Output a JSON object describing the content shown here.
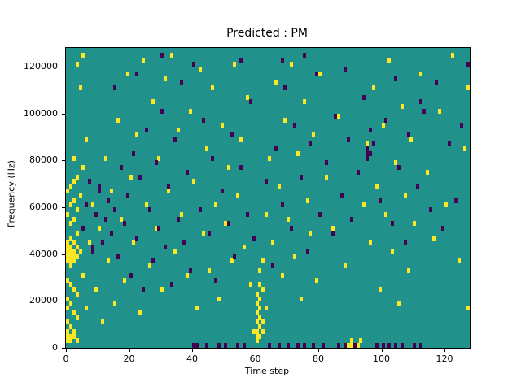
{
  "figure": {
    "title": "Predicted : PM",
    "xlabel": "Time step",
    "ylabel": "Frequency (Hz)"
  },
  "chart_data": {
    "type": "heatmap",
    "title": "Predicted : PM",
    "xlabel": "Time step",
    "ylabel": "Frequency (Hz)",
    "x_range": [
      0,
      128
    ],
    "y_range": [
      0,
      128000
    ],
    "x_ticks": [
      0,
      20,
      40,
      60,
      80,
      100,
      120
    ],
    "y_ticks": [
      0,
      20000,
      40000,
      60000,
      80000,
      100000,
      120000
    ],
    "grid_cols": 128,
    "grid_rows": 64,
    "legend": "none",
    "grid": false,
    "colors": {
      "background": "#21918c",
      "high": "#fde725",
      "low": "#440154",
      "axis": "#000000"
    },
    "cells_high": [
      [
        0,
        1
      ],
      [
        0,
        2
      ],
      [
        0,
        3
      ],
      [
        0,
        5
      ],
      [
        0,
        8
      ],
      [
        0,
        10
      ],
      [
        0,
        14
      ],
      [
        0,
        18
      ],
      [
        0,
        19
      ],
      [
        0,
        20
      ],
      [
        0,
        21
      ],
      [
        0,
        22
      ],
      [
        0,
        28
      ],
      [
        0,
        33
      ],
      [
        1,
        1
      ],
      [
        1,
        2
      ],
      [
        1,
        4
      ],
      [
        1,
        9
      ],
      [
        1,
        13
      ],
      [
        1,
        17
      ],
      [
        1,
        18
      ],
      [
        1,
        19
      ],
      [
        1,
        20
      ],
      [
        1,
        21
      ],
      [
        1,
        23
      ],
      [
        1,
        26
      ],
      [
        1,
        30
      ],
      [
        1,
        34
      ],
      [
        2,
        2
      ],
      [
        2,
        3
      ],
      [
        2,
        7
      ],
      [
        2,
        12
      ],
      [
        2,
        18
      ],
      [
        2,
        19
      ],
      [
        2,
        20
      ],
      [
        2,
        22
      ],
      [
        2,
        27
      ],
      [
        2,
        31
      ],
      [
        2,
        35
      ],
      [
        2,
        40
      ],
      [
        3,
        1
      ],
      [
        3,
        6
      ],
      [
        3,
        11
      ],
      [
        3,
        19
      ],
      [
        3,
        21
      ],
      [
        3,
        24
      ],
      [
        3,
        29
      ],
      [
        3,
        36
      ],
      [
        3,
        60
      ],
      [
        4,
        20
      ],
      [
        4,
        32
      ],
      [
        4,
        55
      ],
      [
        5,
        15
      ],
      [
        5,
        38
      ],
      [
        5,
        62
      ],
      [
        6,
        8
      ],
      [
        6,
        44
      ],
      [
        7,
        22
      ],
      [
        8,
        30
      ],
      [
        9,
        12
      ],
      [
        10,
        25
      ],
      [
        11,
        5
      ],
      [
        12,
        40
      ],
      [
        13,
        18
      ],
      [
        14,
        33
      ],
      [
        15,
        9
      ],
      [
        16,
        48
      ],
      [
        17,
        27
      ],
      [
        18,
        14
      ],
      [
        19,
        58
      ],
      [
        20,
        36
      ],
      [
        21,
        22
      ],
      [
        22,
        45
      ],
      [
        23,
        7
      ],
      [
        24,
        61
      ],
      [
        25,
        30
      ],
      [
        26,
        17
      ],
      [
        27,
        52
      ],
      [
        28,
        25
      ],
      [
        29,
        40
      ],
      [
        30,
        12
      ],
      [
        31,
        57
      ],
      [
        32,
        33
      ],
      [
        33,
        62
      ],
      [
        34,
        20
      ],
      [
        35,
        46
      ],
      [
        36,
        28
      ],
      [
        38,
        15
      ],
      [
        39,
        50
      ],
      [
        40,
        35
      ],
      [
        41,
        8
      ],
      [
        42,
        59
      ],
      [
        43,
        24
      ],
      [
        44,
        42
      ],
      [
        45,
        16
      ],
      [
        46,
        55
      ],
      [
        47,
        30
      ],
      [
        48,
        10
      ],
      [
        49,
        47
      ],
      [
        50,
        26
      ],
      [
        51,
        38
      ],
      [
        52,
        18
      ],
      [
        53,
        60
      ],
      [
        54,
        32
      ],
      [
        55,
        44
      ],
      [
        56,
        21
      ],
      [
        57,
        53
      ],
      [
        58,
        13
      ],
      [
        59,
        3
      ],
      [
        60,
        1
      ],
      [
        60,
        2
      ],
      [
        60,
        3
      ],
      [
        60,
        5
      ],
      [
        60,
        7
      ],
      [
        60,
        9
      ],
      [
        60,
        11
      ],
      [
        61,
        2
      ],
      [
        61,
        4
      ],
      [
        61,
        6
      ],
      [
        61,
        8
      ],
      [
        61,
        10
      ],
      [
        61,
        13
      ],
      [
        61,
        16
      ],
      [
        62,
        3
      ],
      [
        62,
        5
      ],
      [
        62,
        12
      ],
      [
        62,
        18
      ],
      [
        63,
        8
      ],
      [
        63,
        28
      ],
      [
        64,
        40
      ],
      [
        65,
        22
      ],
      [
        66,
        56
      ],
      [
        67,
        34
      ],
      [
        68,
        15
      ],
      [
        69,
        48
      ],
      [
        70,
        27
      ],
      [
        71,
        60
      ],
      [
        72,
        19
      ],
      [
        73,
        41
      ],
      [
        74,
        10
      ],
      [
        75,
        52
      ],
      [
        76,
        31
      ],
      [
        77,
        24
      ],
      [
        78,
        45
      ],
      [
        79,
        14
      ],
      [
        80,
        58
      ],
      [
        82,
        36
      ],
      [
        84,
        25
      ],
      [
        86,
        49
      ],
      [
        88,
        17
      ],
      [
        89,
        0
      ],
      [
        90,
        0
      ],
      [
        90,
        1
      ],
      [
        92,
        0
      ],
      [
        93,
        1
      ],
      [
        94,
        30
      ],
      [
        95,
        43
      ],
      [
        96,
        22
      ],
      [
        97,
        55
      ],
      [
        98,
        34
      ],
      [
        99,
        12
      ],
      [
        100,
        47
      ],
      [
        101,
        28
      ],
      [
        102,
        61
      ],
      [
        103,
        20
      ],
      [
        104,
        39
      ],
      [
        105,
        9
      ],
      [
        106,
        51
      ],
      [
        107,
        32
      ],
      [
        108,
        16
      ],
      [
        109,
        44
      ],
      [
        110,
        26
      ],
      [
        112,
        58
      ],
      [
        114,
        37
      ],
      [
        116,
        23
      ],
      [
        118,
        50
      ],
      [
        120,
        30
      ],
      [
        122,
        62
      ],
      [
        124,
        18
      ],
      [
        126,
        42
      ],
      [
        127,
        8
      ],
      [
        127,
        55
      ]
    ],
    "cells_low": [
      [
        5,
        25
      ],
      [
        6,
        30
      ],
      [
        7,
        35
      ],
      [
        8,
        20
      ],
      [
        8,
        21
      ],
      [
        9,
        28
      ],
      [
        10,
        33
      ],
      [
        10,
        34
      ],
      [
        11,
        22
      ],
      [
        12,
        27
      ],
      [
        13,
        31
      ],
      [
        14,
        24
      ],
      [
        15,
        29
      ],
      [
        16,
        19
      ],
      [
        17,
        38
      ],
      [
        18,
        26
      ],
      [
        19,
        32
      ],
      [
        20,
        15
      ],
      [
        21,
        41
      ],
      [
        22,
        23
      ],
      [
        23,
        36
      ],
      [
        24,
        12
      ],
      [
        25,
        46
      ],
      [
        26,
        29
      ],
      [
        27,
        18
      ],
      [
        28,
        39
      ],
      [
        29,
        25
      ],
      [
        30,
        50
      ],
      [
        31,
        21
      ],
      [
        32,
        34
      ],
      [
        33,
        13
      ],
      [
        34,
        44
      ],
      [
        35,
        27
      ],
      [
        36,
        56
      ],
      [
        37,
        22
      ],
      [
        38,
        37
      ],
      [
        39,
        16
      ],
      [
        40,
        0
      ],
      [
        41,
        0
      ],
      [
        42,
        29
      ],
      [
        43,
        48
      ],
      [
        44,
        0
      ],
      [
        45,
        24
      ],
      [
        46,
        40
      ],
      [
        47,
        14
      ],
      [
        48,
        0
      ],
      [
        49,
        33
      ],
      [
        50,
        0
      ],
      [
        51,
        26
      ],
      [
        52,
        45
      ],
      [
        53,
        19
      ],
      [
        54,
        0
      ],
      [
        55,
        38
      ],
      [
        56,
        0
      ],
      [
        57,
        28
      ],
      [
        58,
        52
      ],
      [
        59,
        23
      ],
      [
        63,
        35
      ],
      [
        64,
        0
      ],
      [
        65,
        17
      ],
      [
        66,
        42
      ],
      [
        67,
        0
      ],
      [
        68,
        30
      ],
      [
        69,
        55
      ],
      [
        70,
        0
      ],
      [
        71,
        25
      ],
      [
        72,
        47
      ],
      [
        73,
        0
      ],
      [
        74,
        36
      ],
      [
        75,
        0
      ],
      [
        76,
        20
      ],
      [
        77,
        43
      ],
      [
        78,
        0
      ],
      [
        79,
        58
      ],
      [
        80,
        28
      ],
      [
        81,
        0
      ],
      [
        82,
        39
      ],
      [
        84,
        24
      ],
      [
        85,
        49
      ],
      [
        86,
        0
      ],
      [
        87,
        32
      ],
      [
        88,
        0
      ],
      [
        89,
        44
      ],
      [
        90,
        27
      ],
      [
        91,
        0
      ],
      [
        92,
        37
      ],
      [
        94,
        53
      ],
      [
        95,
        40
      ],
      [
        95,
        41
      ],
      [
        95,
        42
      ],
      [
        96,
        41
      ],
      [
        96,
        46
      ],
      [
        97,
        43
      ],
      [
        98,
        0
      ],
      [
        99,
        31
      ],
      [
        100,
        0
      ],
      [
        101,
        48
      ],
      [
        102,
        0
      ],
      [
        103,
        26
      ],
      [
        104,
        0
      ],
      [
        105,
        38
      ],
      [
        106,
        0
      ],
      [
        107,
        22
      ],
      [
        108,
        45
      ],
      [
        110,
        0
      ],
      [
        111,
        34
      ],
      [
        112,
        0
      ],
      [
        113,
        50
      ],
      [
        115,
        29
      ],
      [
        117,
        56
      ],
      [
        119,
        25
      ],
      [
        121,
        43
      ],
      [
        123,
        31
      ],
      [
        125,
        47
      ],
      [
        127,
        60
      ],
      [
        40,
        60
      ],
      [
        55,
        61
      ],
      [
        75,
        62
      ],
      [
        30,
        62
      ],
      [
        15,
        55
      ],
      [
        22,
        58
      ],
      [
        68,
        61
      ],
      [
        88,
        59
      ],
      [
        104,
        57
      ],
      [
        112,
        52
      ]
    ]
  }
}
